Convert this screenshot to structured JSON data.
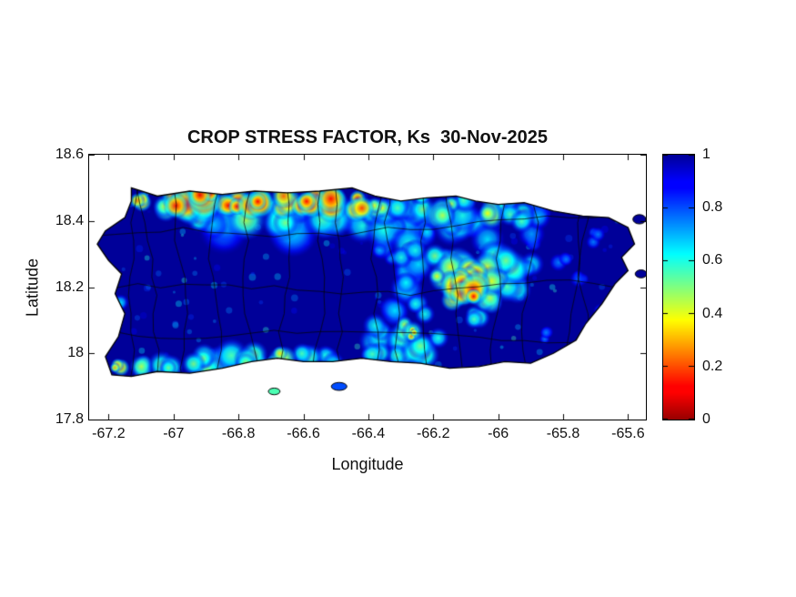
{
  "figure": {
    "title": "CROP STRESS FACTOR, Ks  30-Nov-2025",
    "xlabel": "Longitude",
    "ylabel": "Latitude"
  },
  "colors": {
    "background": "#FFFFFF",
    "axis": "#000000",
    "text": "#111111"
  },
  "chart_data": {
    "type": "heatmap",
    "title": "CROP STRESS FACTOR, Ks  30-Nov-2025",
    "variable": "Crop stress factor Ks",
    "date_shown": "30-Nov-2025",
    "region": "Puerto Rico",
    "xlabel": "Longitude",
    "ylabel": "Latitude",
    "xlim": [
      -67.26,
      -65.545
    ],
    "ylim": [
      17.8,
      18.6
    ],
    "xticks": [
      -67.2,
      -67,
      -66.8,
      -66.6,
      -66.4,
      -66.2,
      -66,
      -65.8,
      -65.6
    ],
    "xtick_labels": [
      "-67.2",
      "-67",
      "-66.8",
      "-66.6",
      "-66.4",
      "-66.2",
      "-66",
      "-65.8",
      "-65.6"
    ],
    "yticks": [
      17.8,
      18,
      18.2,
      18.4,
      18.6
    ],
    "ytick_labels": [
      "17.8",
      "18",
      "18.2",
      "18.4",
      "18.6"
    ],
    "colorbar": {
      "min": 0,
      "max": 1,
      "ticks": [
        0,
        0.2,
        0.4,
        0.6,
        0.8,
        1
      ],
      "tick_labels": [
        "0",
        "0.2",
        "0.4",
        "0.6",
        "0.8",
        "1"
      ],
      "colormap": "jet_reversed",
      "top_color": "#000099",
      "bottom_color": "#990000"
    },
    "value_semantics": "Ks = 1 no stress (dark blue), Ks = 0 maximum stress (dark red)",
    "base_value": 1,
    "island_outline": [
      [
        -67.13,
        18.5
      ],
      [
        -67.05,
        18.475
      ],
      [
        -66.95,
        18.49
      ],
      [
        -66.85,
        18.48
      ],
      [
        -66.75,
        18.49
      ],
      [
        -66.65,
        18.485
      ],
      [
        -66.55,
        18.49
      ],
      [
        -66.45,
        18.5
      ],
      [
        -66.38,
        18.475
      ],
      [
        -66.3,
        18.46
      ],
      [
        -66.22,
        18.47
      ],
      [
        -66.13,
        18.475
      ],
      [
        -66.07,
        18.46
      ],
      [
        -66.0,
        18.45
      ],
      [
        -65.92,
        18.455
      ],
      [
        -65.83,
        18.43
      ],
      [
        -65.74,
        18.415
      ],
      [
        -65.66,
        18.41
      ],
      [
        -65.6,
        18.38
      ],
      [
        -65.58,
        18.33
      ],
      [
        -65.62,
        18.29
      ],
      [
        -65.6,
        18.25
      ],
      [
        -65.64,
        18.21
      ],
      [
        -65.68,
        18.15
      ],
      [
        -65.73,
        18.09
      ],
      [
        -65.76,
        18.04
      ],
      [
        -65.83,
        18.0
      ],
      [
        -65.9,
        17.97
      ],
      [
        -65.98,
        17.975
      ],
      [
        -66.06,
        17.96
      ],
      [
        -66.15,
        17.955
      ],
      [
        -66.24,
        17.97
      ],
      [
        -66.33,
        17.975
      ],
      [
        -66.42,
        17.985
      ],
      [
        -66.51,
        17.975
      ],
      [
        -66.6,
        17.975
      ],
      [
        -66.68,
        17.985
      ],
      [
        -66.76,
        17.975
      ],
      [
        -66.85,
        17.955
      ],
      [
        -66.95,
        17.94
      ],
      [
        -67.05,
        17.945
      ],
      [
        -67.13,
        17.93
      ],
      [
        -67.19,
        17.935
      ],
      [
        -67.21,
        17.99
      ],
      [
        -67.17,
        18.05
      ],
      [
        -67.15,
        18.12
      ],
      [
        -67.18,
        18.18
      ],
      [
        -67.16,
        18.24
      ],
      [
        -67.2,
        18.28
      ],
      [
        -67.235,
        18.33
      ],
      [
        -67.21,
        18.37
      ],
      [
        -67.15,
        18.41
      ],
      [
        -67.13,
        18.46
      ]
    ],
    "islets": [
      [
        -66.69,
        17.885,
        0.018,
        0.01,
        0.55
      ],
      [
        -66.49,
        17.9,
        0.024,
        0.012,
        0.8
      ],
      [
        -65.565,
        18.405,
        0.02,
        0.014,
        1.0
      ],
      [
        -65.56,
        18.24,
        0.018,
        0.012,
        1.0
      ]
    ],
    "hotspots": [
      [
        -66.98,
        18.455,
        0.05,
        0.1
      ],
      [
        -66.9,
        18.465,
        0.05,
        0.08
      ],
      [
        -66.82,
        18.46,
        0.05,
        0.12
      ],
      [
        -66.74,
        18.455,
        0.045,
        0.1
      ],
      [
        -66.66,
        18.455,
        0.04,
        0.22
      ],
      [
        -66.58,
        18.46,
        0.045,
        0.12
      ],
      [
        -66.5,
        18.455,
        0.045,
        0.1
      ],
      [
        -66.44,
        18.45,
        0.04,
        0.18
      ],
      [
        -67.1,
        18.455,
        0.03,
        0.25
      ],
      [
        -66.37,
        18.445,
        0.04,
        0.4
      ],
      [
        -66.3,
        18.44,
        0.045,
        0.55
      ],
      [
        -67.03,
        18.44,
        0.035,
        0.45
      ],
      [
        -66.93,
        18.425,
        0.06,
        0.5
      ],
      [
        -66.8,
        18.42,
        0.06,
        0.45
      ],
      [
        -66.66,
        18.42,
        0.06,
        0.5
      ],
      [
        -66.52,
        18.42,
        0.06,
        0.55
      ],
      [
        -66.44,
        18.41,
        0.05,
        0.6
      ],
      [
        -66.86,
        18.4,
        0.07,
        0.68
      ],
      [
        -66.62,
        18.395,
        0.07,
        0.65
      ],
      [
        -66.38,
        18.4,
        0.06,
        0.6
      ],
      [
        -66.28,
        18.42,
        0.05,
        0.62
      ],
      [
        -66.22,
        18.455,
        0.04,
        0.5
      ],
      [
        -66.24,
        18.38,
        0.05,
        0.65
      ],
      [
        -66.16,
        18.43,
        0.045,
        0.45
      ],
      [
        -66.1,
        18.46,
        0.035,
        0.55
      ],
      [
        -66.12,
        18.4,
        0.05,
        0.6
      ],
      [
        -66.04,
        18.43,
        0.04,
        0.38
      ],
      [
        -65.98,
        18.44,
        0.04,
        0.6
      ],
      [
        -66.06,
        18.37,
        0.05,
        0.65
      ],
      [
        -65.94,
        18.4,
        0.045,
        0.55
      ],
      [
        -65.86,
        18.43,
        0.04,
        0.68
      ],
      [
        -65.88,
        18.35,
        0.04,
        0.72
      ],
      [
        -66.31,
        18.37,
        0.05,
        0.62
      ],
      [
        -66.28,
        18.31,
        0.05,
        0.6
      ],
      [
        -66.26,
        18.25,
        0.05,
        0.65
      ],
      [
        -66.3,
        18.19,
        0.045,
        0.62
      ],
      [
        -66.35,
        18.3,
        0.04,
        0.7
      ],
      [
        -66.24,
        18.14,
        0.04,
        0.6
      ],
      [
        -66.13,
        18.21,
        0.05,
        0.18
      ],
      [
        -66.1,
        18.18,
        0.045,
        0.12
      ],
      [
        -66.08,
        18.23,
        0.045,
        0.25
      ],
      [
        -66.15,
        18.17,
        0.04,
        0.3
      ],
      [
        -66.17,
        18.24,
        0.045,
        0.4
      ],
      [
        -66.18,
        18.28,
        0.045,
        0.5
      ],
      [
        -66.1,
        18.28,
        0.05,
        0.45
      ],
      [
        -66.02,
        18.24,
        0.05,
        0.4
      ],
      [
        -65.97,
        18.26,
        0.05,
        0.5
      ],
      [
        -65.95,
        18.21,
        0.045,
        0.55
      ],
      [
        -66.04,
        18.17,
        0.045,
        0.45
      ],
      [
        -66.02,
        18.3,
        0.05,
        0.55
      ],
      [
        -65.9,
        18.26,
        0.04,
        0.62
      ],
      [
        -66.06,
        18.12,
        0.04,
        0.55
      ],
      [
        -66.36,
        18.06,
        0.05,
        0.6
      ],
      [
        -66.3,
        18.02,
        0.05,
        0.55
      ],
      [
        -66.27,
        18.08,
        0.04,
        0.45
      ],
      [
        -66.24,
        18.0,
        0.045,
        0.5
      ],
      [
        -66.38,
        17.99,
        0.04,
        0.55
      ],
      [
        -66.26,
        18.06,
        0.02,
        0.25
      ],
      [
        -66.33,
        18.12,
        0.04,
        0.65
      ],
      [
        -66.2,
        18.04,
        0.04,
        0.6
      ],
      [
        -66.92,
        17.97,
        0.05,
        0.5
      ],
      [
        -66.84,
        17.975,
        0.05,
        0.55
      ],
      [
        -66.76,
        17.975,
        0.045,
        0.48
      ],
      [
        -66.67,
        17.985,
        0.04,
        0.35
      ],
      [
        -66.6,
        17.98,
        0.04,
        0.55
      ],
      [
        -67.02,
        17.965,
        0.04,
        0.52
      ],
      [
        -67.1,
        17.96,
        0.035,
        0.45
      ],
      [
        -67.17,
        17.955,
        0.025,
        0.3
      ],
      [
        -66.52,
        17.985,
        0.035,
        0.6
      ],
      [
        -67.19,
        18.09,
        0.03,
        0.6
      ],
      [
        -67.17,
        18.16,
        0.025,
        0.65
      ],
      [
        -67.21,
        18.24,
        0.02,
        0.65
      ],
      [
        -65.8,
        18.28,
        0.035,
        0.75
      ],
      [
        -65.74,
        18.22,
        0.03,
        0.78
      ],
      [
        -65.7,
        18.35,
        0.03,
        0.75
      ],
      [
        -65.68,
        18.12,
        0.025,
        0.78
      ],
      [
        -65.85,
        18.05,
        0.03,
        0.75
      ]
    ],
    "boundaries": {
      "style": "municipal",
      "vertical_lines": 16,
      "horizontal_lats": [
        18.09,
        18.23,
        18.37
      ]
    }
  }
}
